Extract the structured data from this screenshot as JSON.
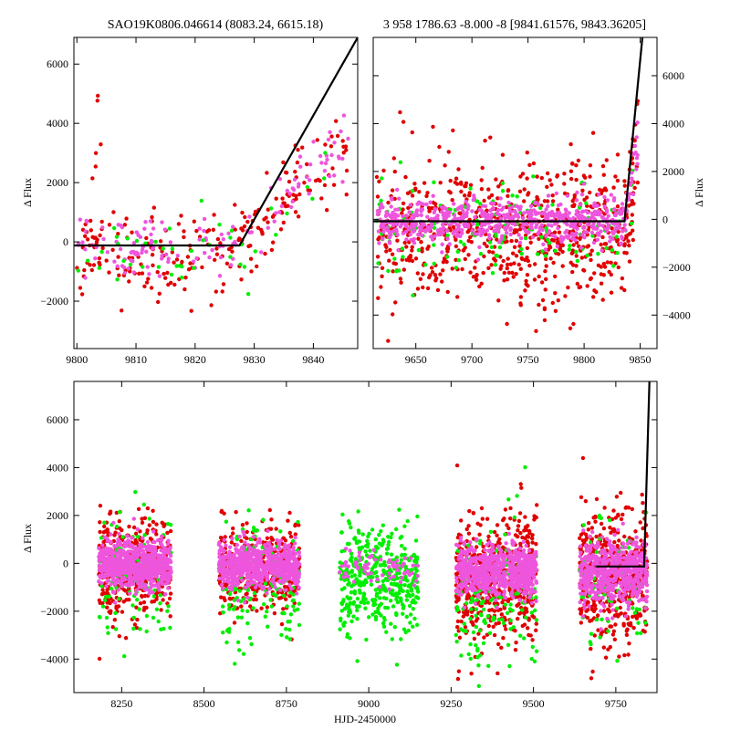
{
  "colors": {
    "red": "#e00000",
    "pink": "#ee55dd",
    "green": "#00ee00",
    "model": "#000000"
  },
  "chart_data": [
    {
      "id": "top-left",
      "type": "scatter",
      "title": "SAO19K0806.046614 (8083.24, 6615.18)",
      "xlabel": "",
      "ylabel": "Δ Flux",
      "xlim": [
        9799.5,
        9847.5
      ],
      "ylim": [
        -3600,
        6900
      ],
      "xticks": [
        9800,
        9810,
        9820,
        9830,
        9840
      ],
      "yticks": [
        -2000,
        0,
        2000,
        4000,
        6000
      ],
      "y_axis_side": "left",
      "model_line": {
        "x": [
          9799.5,
          9827.5,
          9847.5
        ],
        "y": [
          -120,
          -120,
          6900
        ]
      },
      "series": [
        {
          "name": "red",
          "color_key": "red",
          "groups": [
            {
              "x_range": [
                9800,
                9846
              ],
              "y_center": -300,
              "y_spread": 800,
              "count": 230,
              "trend": "rise-after-9828",
              "seed": 11
            },
            {
              "x_range": [
                9803,
                9805
              ],
              "y_center": 3800,
              "y_spread": 700,
              "count": 4,
              "seed": 12
            }
          ]
        },
        {
          "name": "pink",
          "color_key": "pink",
          "groups": [
            {
              "x_range": [
                9800,
                9846
              ],
              "y_center": -150,
              "y_spread": 500,
              "count": 140,
              "trend": "rise-after-9828",
              "seed": 13
            }
          ]
        },
        {
          "name": "green",
          "color_key": "green",
          "groups": [
            {
              "x_range": [
                9800,
                9846
              ],
              "y_center": -300,
              "y_spread": 600,
              "count": 45,
              "trend": "rise-after-9828",
              "seed": 14
            }
          ]
        }
      ]
    },
    {
      "id": "top-right",
      "type": "scatter",
      "title": "3 958 1786.63 -8.000 -8 [9841.61576, 9843.36205]",
      "xlabel": "",
      "ylabel": "Δ Flux",
      "xlim": [
        9612,
        9865
      ],
      "ylim": [
        -5400,
        7600
      ],
      "xticks": [
        9650,
        9700,
        9750,
        9800,
        9850
      ],
      "yticks": [
        -4000,
        -2000,
        0,
        2000,
        4000,
        6000
      ],
      "y_axis_side": "right",
      "model_line": {
        "x": [
          9612,
          9836,
          9852
        ],
        "y": [
          -80,
          -80,
          7600
        ]
      },
      "series": [
        {
          "name": "red",
          "color_key": "red",
          "groups": [
            {
              "x_range": [
                9615,
                9848
              ],
              "y_center": -450,
              "y_spread": 1500,
              "count": 700,
              "trend": "rise-after-9836",
              "seed": 21
            }
          ]
        },
        {
          "name": "green",
          "color_key": "green",
          "groups": [
            {
              "x_range": [
                9615,
                9848
              ],
              "y_center": -500,
              "y_spread": 900,
              "count": 150,
              "trend": "rise-after-9836",
              "seed": 22
            }
          ]
        },
        {
          "name": "pink",
          "color_key": "pink",
          "groups": [
            {
              "x_range": [
                9615,
                9848
              ],
              "y_center": -50,
              "y_spread": 450,
              "count": 650,
              "trend": "rise-after-9836",
              "seed": 23
            }
          ]
        }
      ]
    },
    {
      "id": "bottom",
      "type": "scatter",
      "title": "",
      "xlabel": "HJD-2450000",
      "ylabel": "Δ Flux",
      "xlim": [
        8105,
        9875
      ],
      "ylim": [
        -5400,
        7600
      ],
      "xticks": [
        8250,
        8500,
        8750,
        9000,
        9250,
        9500,
        9750
      ],
      "yticks": [
        -4000,
        -2000,
        0,
        2000,
        4000,
        6000
      ],
      "y_axis_side": "left",
      "model_line": {
        "x": [
          9690,
          9836,
          9852
        ],
        "y": [
          -130,
          -130,
          7600
        ]
      },
      "series": [
        {
          "name": "red",
          "color_key": "red",
          "groups": [
            {
              "x_range": [
                8180,
                8400
              ],
              "y_center": -200,
              "y_spread": 1100,
              "count": 380,
              "seed": 31
            },
            {
              "x_range": [
                8545,
                8790
              ],
              "y_center": -200,
              "y_spread": 1000,
              "count": 330,
              "seed": 32
            },
            {
              "x_range": [
                9265,
                9510
              ],
              "y_center": -600,
              "y_spread": 1300,
              "count": 520,
              "seed": 33
            },
            {
              "x_range": [
                9640,
                9845
              ],
              "y_center": -500,
              "y_spread": 1400,
              "count": 480,
              "seed": 34
            }
          ]
        },
        {
          "name": "green",
          "color_key": "green",
          "groups": [
            {
              "x_range": [
                8180,
                8400
              ],
              "y_center": -600,
              "y_spread": 1400,
              "count": 110,
              "seed": 41
            },
            {
              "x_range": [
                8545,
                8790
              ],
              "y_center": -900,
              "y_spread": 1400,
              "count": 160,
              "seed": 42
            },
            {
              "x_range": [
                8910,
                9150
              ],
              "y_center": -700,
              "y_spread": 1100,
              "count": 420,
              "seed": 43
            },
            {
              "x_range": [
                9265,
                9510
              ],
              "y_center": -1500,
              "y_spread": 1600,
              "count": 150,
              "seed": 44
            },
            {
              "x_range": [
                9640,
                9845
              ],
              "y_center": -900,
              "y_spread": 1500,
              "count": 80,
              "seed": 45
            }
          ]
        },
        {
          "name": "pink",
          "color_key": "pink",
          "groups": [
            {
              "x_range": [
                8180,
                8400
              ],
              "y_center": -50,
              "y_spread": 500,
              "count": 700,
              "seed": 51
            },
            {
              "x_range": [
                8545,
                8790
              ],
              "y_center": -100,
              "y_spread": 450,
              "count": 650,
              "seed": 52
            },
            {
              "x_range": [
                8910,
                9150
              ],
              "y_center": -150,
              "y_spread": 350,
              "count": 70,
              "seed": 53
            },
            {
              "x_range": [
                9265,
                9510
              ],
              "y_center": -300,
              "y_spread": 550,
              "count": 700,
              "seed": 54
            },
            {
              "x_range": [
                9640,
                9845
              ],
              "y_center": -350,
              "y_spread": 700,
              "count": 550,
              "seed": 55
            }
          ]
        }
      ]
    }
  ]
}
